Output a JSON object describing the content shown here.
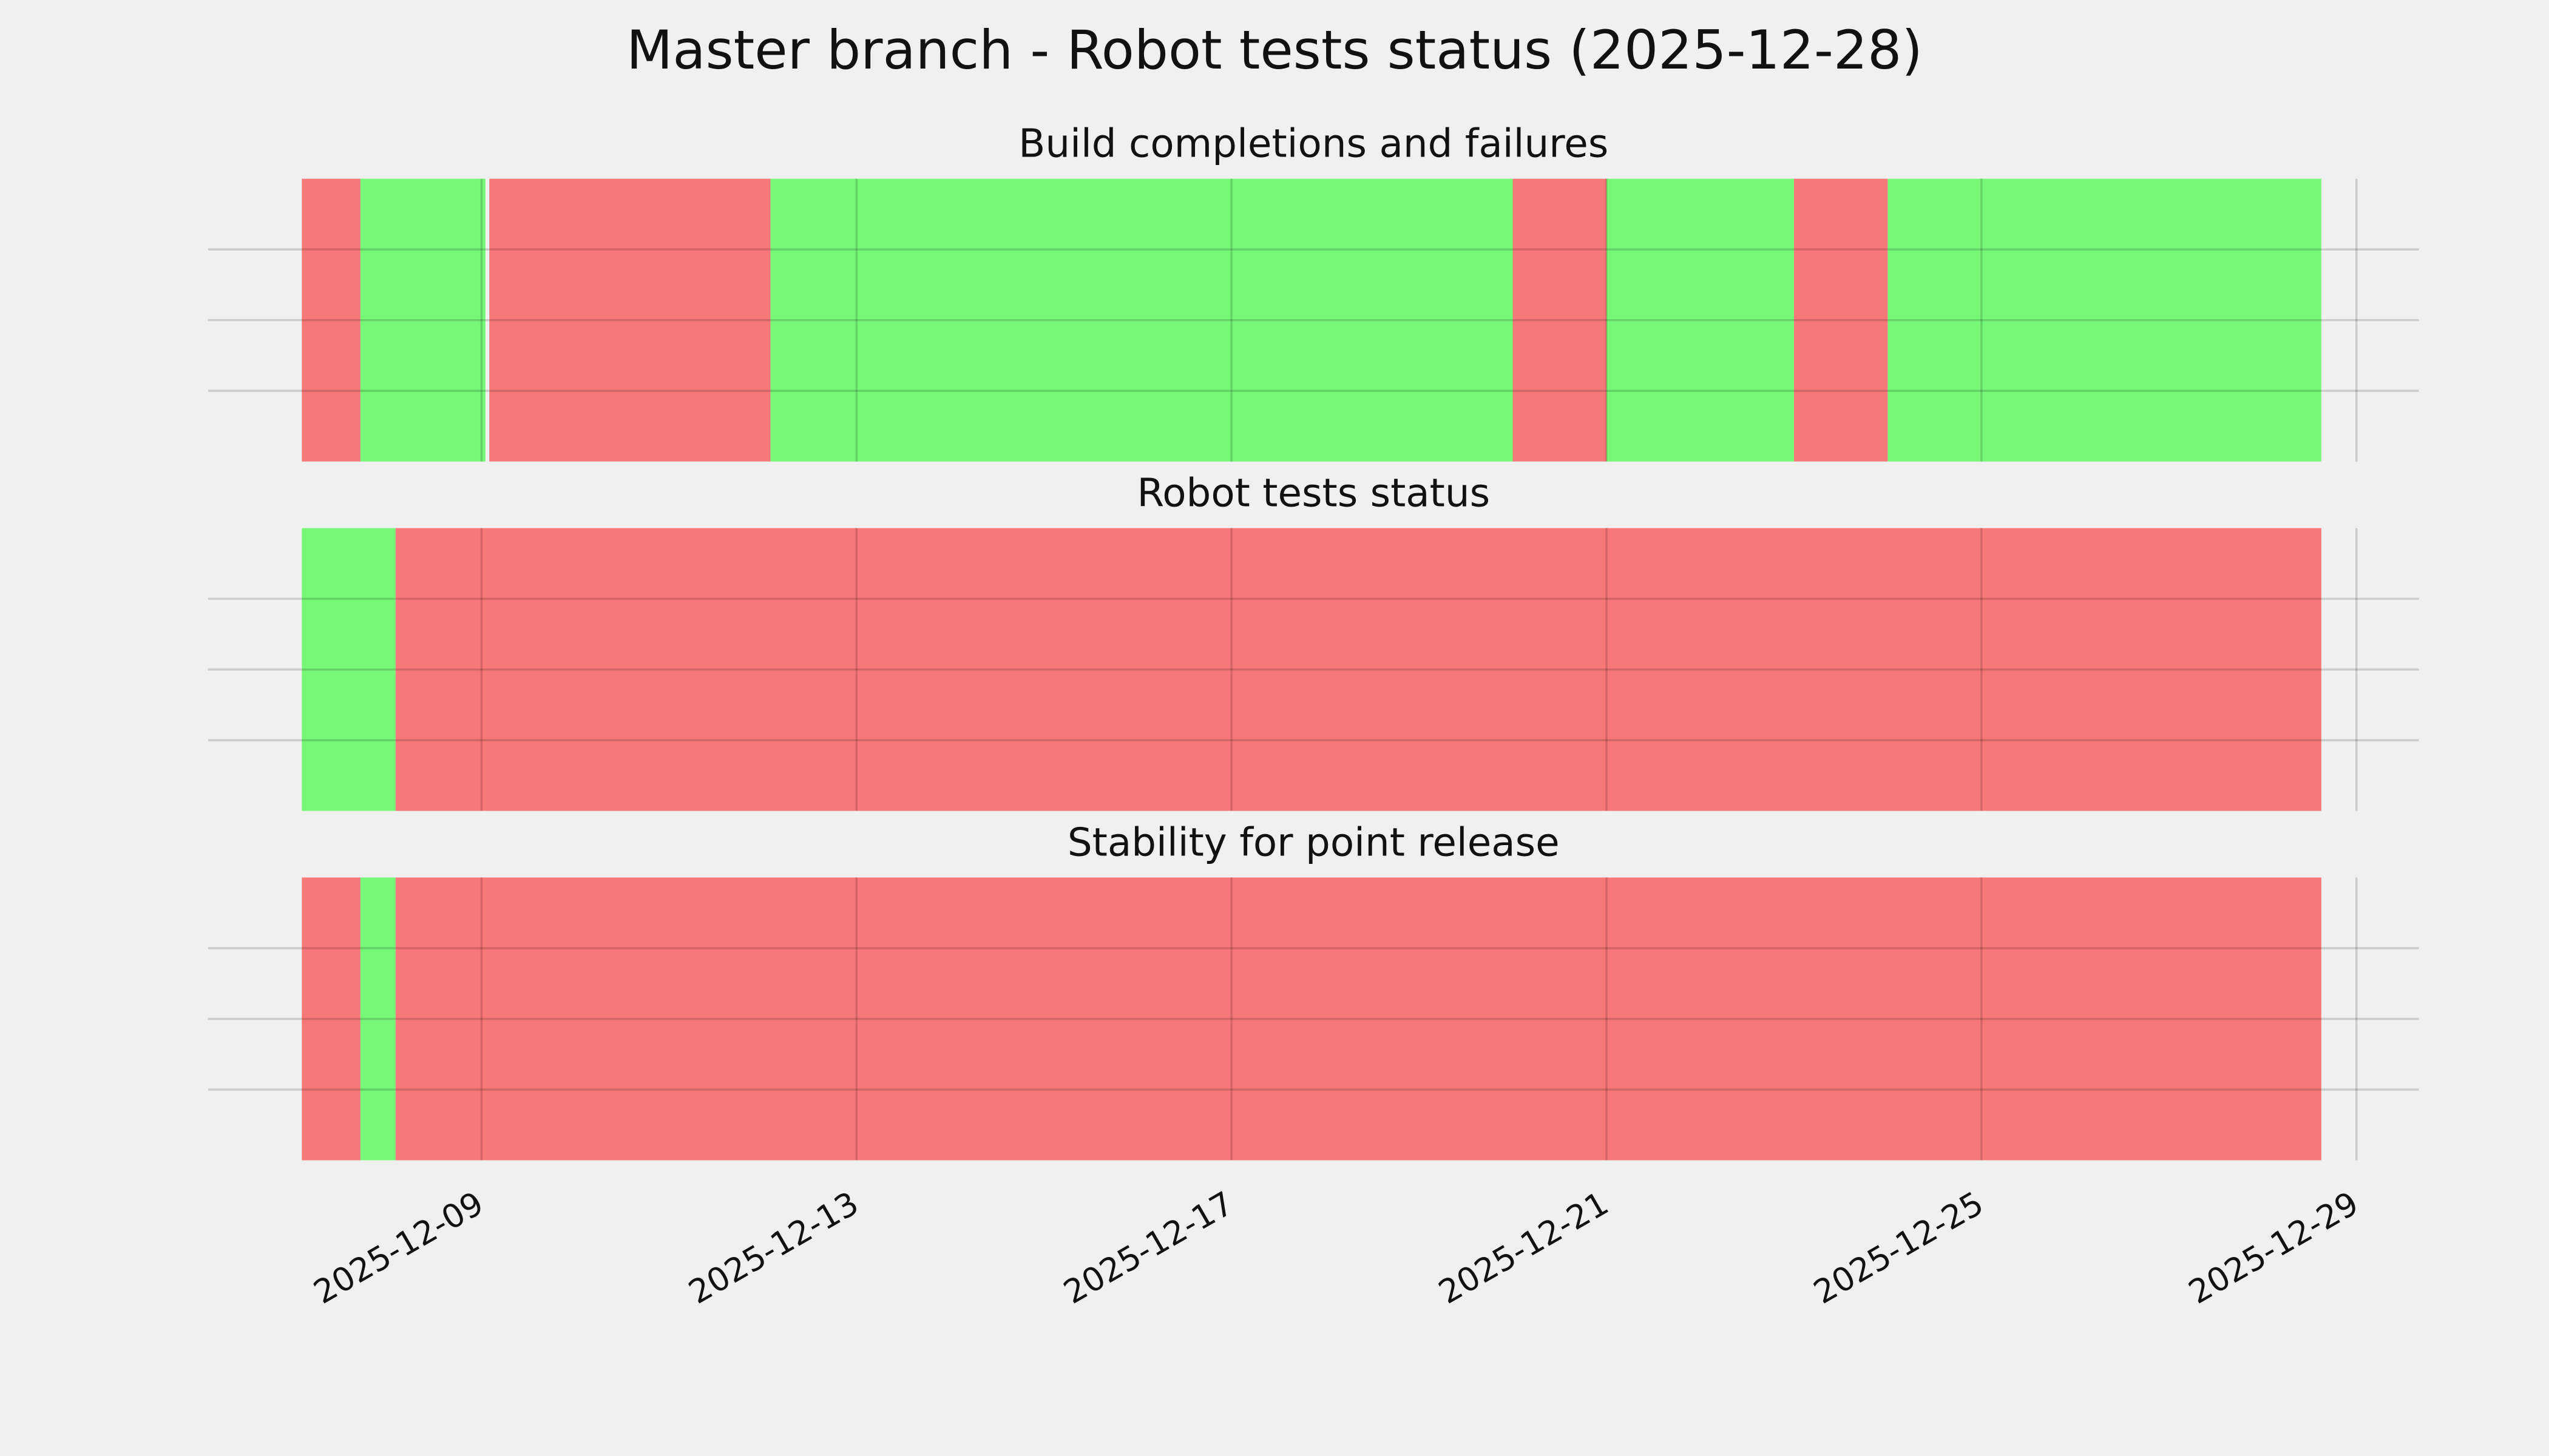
{
  "title": "Master branch - Robot tests status (2025-12-28)",
  "xlim": [
    "2025-12-06T02:00",
    "2025-12-29T16:00"
  ],
  "xticks": [
    "2025-12-09",
    "2025-12-13",
    "2025-12-17",
    "2025-12-21",
    "2025-12-25",
    "2025-12-29"
  ],
  "chart_data": [
    {
      "type": "timeline",
      "title": "Build completions and failures",
      "starts": [
        "2025-12-07T02:00",
        "2025-12-07T17:00",
        "2025-12-09T02:00",
        "2025-12-12T02:00",
        "2025-12-20T00:00",
        "2025-12-21T00:00",
        "2025-12-23T00:00",
        "2025-12-24T00:00"
      ],
      "ends": [
        "2025-12-07T17:00",
        "2025-12-09T01:00",
        "2025-12-12T02:00",
        "2025-12-20T00:00",
        "2025-12-21T00:00",
        "2025-12-23T00:00",
        "2025-12-24T00:00",
        "2025-12-28T15:00"
      ],
      "colors": [
        "#f77878",
        "#77f778",
        "#f77878",
        "#77f778",
        "#f77878",
        "#77f778",
        "#f77878",
        "#77f778"
      ],
      "ylim": [
        0,
        1
      ],
      "yticks": [
        0.25,
        0.5,
        0.75
      ],
      "grid": true
    },
    {
      "type": "timeline",
      "title": "Robot tests status",
      "starts": [
        "2025-12-07T02:00",
        "2025-12-08T02:00"
      ],
      "ends": [
        "2025-12-08T02:00",
        "2025-12-28T15:00"
      ],
      "colors": [
        "#77f778",
        "#f77878"
      ],
      "ylim": [
        0,
        1
      ],
      "yticks": [
        0.25,
        0.5,
        0.75
      ],
      "grid": true
    },
    {
      "type": "timeline",
      "title": "Stability for point release",
      "starts": [
        "2025-12-07T02:00",
        "2025-12-07T17:00",
        "2025-12-08T02:00"
      ],
      "ends": [
        "2025-12-07T17:00",
        "2025-12-08T02:00",
        "2025-12-28T15:00"
      ],
      "colors": [
        "#f77878",
        "#77f778",
        "#f77878"
      ],
      "ylim": [
        0,
        1
      ],
      "yticks": [
        0.25,
        0.5,
        0.75
      ],
      "grid": true
    }
  ]
}
